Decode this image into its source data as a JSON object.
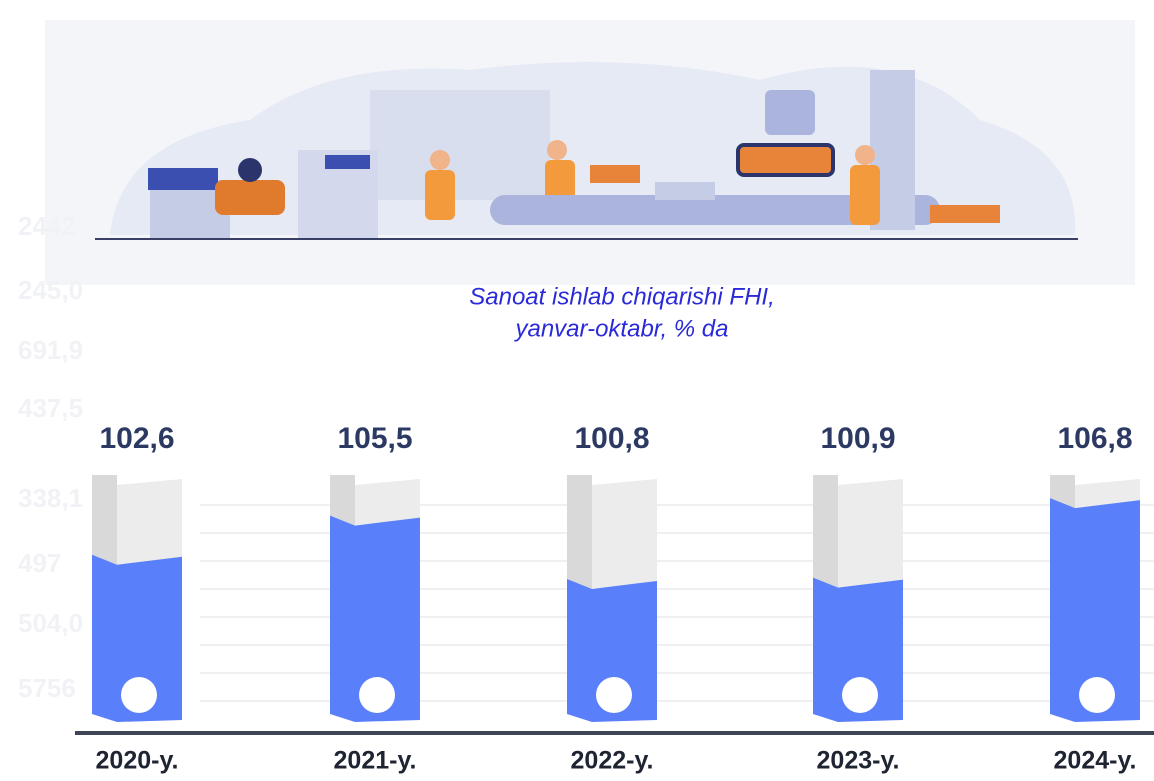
{
  "chart_data": {
    "type": "bar",
    "title": "Sanoat ishlab chiqarishi FHI,",
    "subtitle": "yanvar-oktabr, % da",
    "categories": [
      "2020-y.",
      "2021-y.",
      "2022-y.",
      "2023-y.",
      "2024-y."
    ],
    "values": [
      102.6,
      105.5,
      100.8,
      100.9,
      106.8
    ],
    "value_labels": [
      "102,6",
      "105,5",
      "100,8",
      "100,9",
      "106,8"
    ],
    "color": "#5a7ffb",
    "background_texts": [
      "2442",
      "245,0",
      "691,9",
      "437,5",
      "338,1",
      "497",
      "504,0",
      "5756"
    ]
  }
}
